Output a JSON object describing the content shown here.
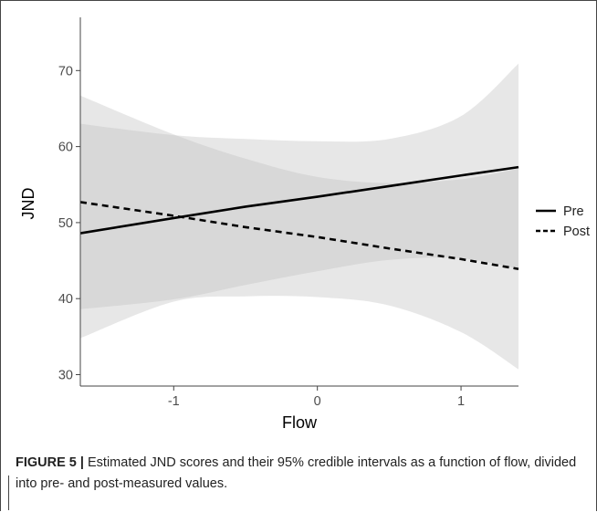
{
  "chart_data": {
    "type": "line",
    "xlabel": "Flow",
    "ylabel": "JND",
    "xlim": [
      -1.65,
      1.4
    ],
    "ylim": [
      28.5,
      77
    ],
    "xticks": [
      -1,
      0,
      1
    ],
    "yticks": [
      30,
      40,
      50,
      60,
      70
    ],
    "grid": false,
    "legend_position": "right",
    "series": [
      {
        "name": "Pre",
        "line_style": "solid",
        "x": [
          -1.65,
          -1,
          -0.5,
          0,
          0.5,
          1,
          1.4
        ],
        "y": [
          48.6,
          50.6,
          52.1,
          53.4,
          54.8,
          56.2,
          57.3
        ],
        "ci_lower": [
          38.6,
          39.9,
          41.8,
          43.6,
          45.1,
          45.3,
          43.9
        ],
        "ci_upper": [
          63.0,
          61.5,
          61.0,
          60.7,
          61.0,
          64.0,
          70.9
        ]
      },
      {
        "name": "Post",
        "line_style": "dashed",
        "x": [
          -1.65,
          -1,
          -0.5,
          0,
          0.5,
          1,
          1.4
        ],
        "y": [
          52.7,
          50.9,
          49.4,
          48.1,
          46.6,
          45.2,
          43.9
        ],
        "ci_lower": [
          34.8,
          39.6,
          40.3,
          40.2,
          39.1,
          35.6,
          30.7
        ],
        "ci_upper": [
          66.7,
          61.6,
          58.4,
          56.0,
          55.2,
          55.7,
          57.1
        ]
      }
    ],
    "ci_color": "#bfbfbf",
    "line_color": "#000000"
  },
  "caption": {
    "label": "FIGURE 5 |",
    "text": "Estimated JND scores and their 95% credible intervals as a function of flow, divided into pre- and post-measured values."
  }
}
